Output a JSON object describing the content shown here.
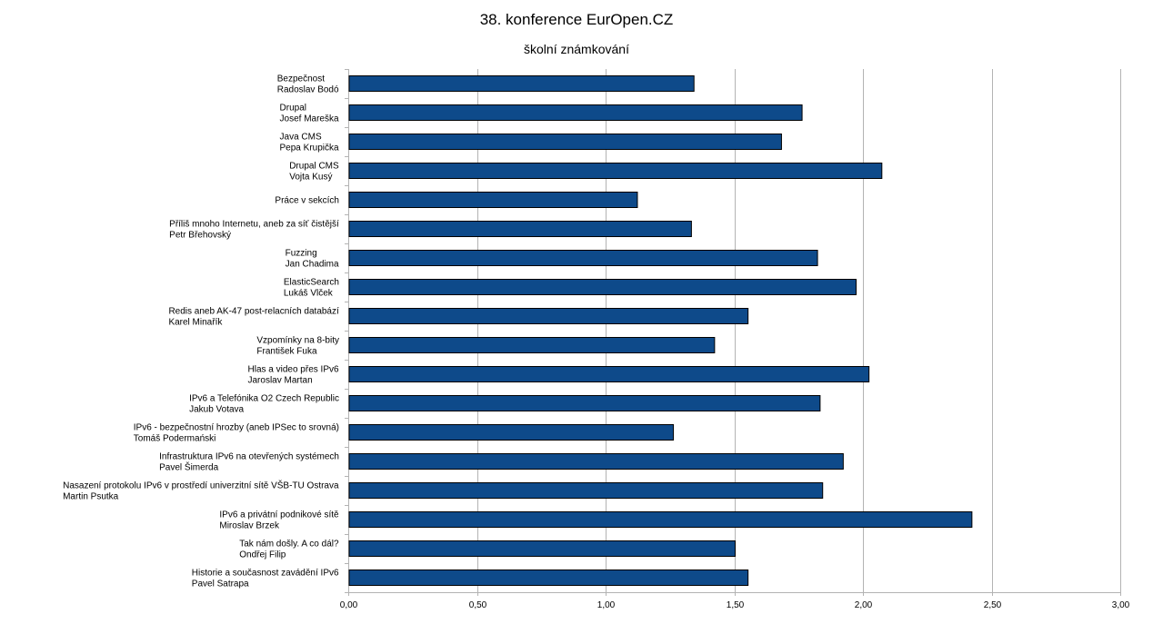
{
  "chart_data": {
    "type": "bar",
    "orientation": "horizontal",
    "title": "38. konference EurOpen.CZ",
    "subtitle": "školní známkování",
    "xlabel": "",
    "ylabel": "",
    "xlim": [
      0,
      3
    ],
    "x_ticks": [
      "0,00",
      "0,50",
      "1,00",
      "1,50",
      "2,00",
      "2,50",
      "3,00"
    ],
    "grid": "vertical",
    "legend": "none",
    "bar_color": "#0e4a8a",
    "categories": [
      [
        "Bezpečnost",
        "Radoslav Bodó"
      ],
      [
        "Drupal",
        "Josef Mareška"
      ],
      [
        "Java CMS",
        "Pepa Krupička"
      ],
      [
        "Drupal CMS",
        "Vojta Kusý"
      ],
      [
        "Práce v sekcích"
      ],
      [
        "Příliš mnoho Internetu, aneb za síť čistější",
        "Petr Břehovský"
      ],
      [
        "Fuzzing",
        "Jan Chadima"
      ],
      [
        "ElasticSearch",
        "Lukáš Vlček"
      ],
      [
        "Redis aneb AK-47 post-relacních databází",
        "Karel Minařík"
      ],
      [
        "Vzpomínky na 8-bity",
        "František Fuka"
      ],
      [
        "Hlas a video přes IPv6",
        "Jaroslav Martan"
      ],
      [
        "IPv6 a Telefónika O2 Czech Republic",
        "Jakub Votava"
      ],
      [
        "IPv6 - bezpečnostní hrozby (aneb IPSec to srovná)",
        "Tomáš Podermański"
      ],
      [
        "Infrastruktura IPv6 na otevřených systémech",
        "Pavel Šimerda"
      ],
      [
        "Nasazení protokolu IPv6 v prostředí univerzitní sítě VŠB-TU Ostrava",
        "Martin Psutka"
      ],
      [
        "IPv6 a privátní podnikové sítě",
        "Miroslav Brzek"
      ],
      [
        "Tak nám došly. A co dál?",
        "Ondřej Filip"
      ],
      [
        "Historie a současnost zavádění IPv6",
        "Pavel Satrapa"
      ]
    ],
    "values": [
      1.34,
      1.76,
      1.68,
      2.07,
      1.12,
      1.33,
      1.82,
      1.97,
      1.55,
      1.42,
      2.02,
      1.83,
      1.26,
      1.92,
      1.84,
      2.42,
      1.5,
      1.55
    ]
  }
}
